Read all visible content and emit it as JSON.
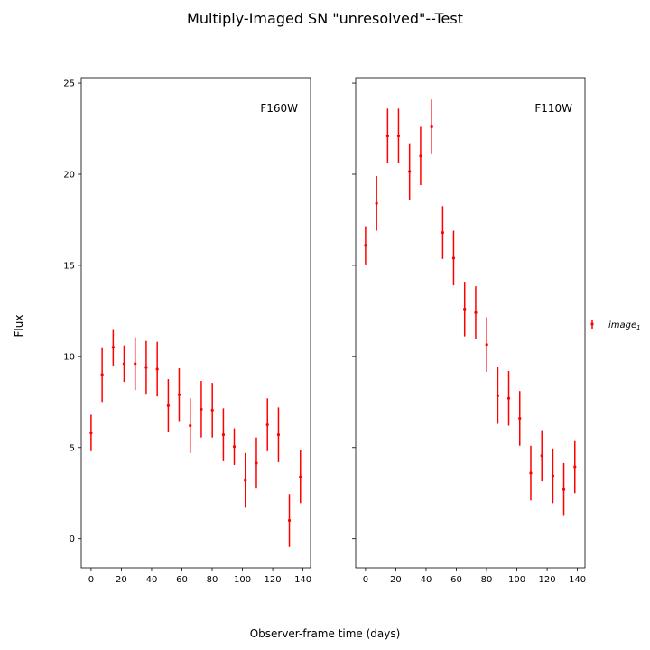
{
  "chart_data": {
    "type": "scatter",
    "title": "Multiply-Imaged SN \"unresolved\"--Test",
    "xlabel": "Observer-frame time (days)",
    "ylabel": "Flux",
    "sharey": true,
    "ylim": [
      -1.6,
      25.3
    ],
    "yticks": [
      0,
      5,
      10,
      15,
      20,
      25
    ],
    "xlim": [
      -6.5,
      145
    ],
    "xticks": [
      0,
      20,
      40,
      60,
      80,
      100,
      120,
      140
    ],
    "grid": false,
    "legend": {
      "position": "right",
      "entries": [
        {
          "label": "image",
          "subscript": "1",
          "color": "#ff0000"
        }
      ]
    },
    "marker_color": "#ff0000",
    "panels": [
      {
        "band": "F160W",
        "series": [
          {
            "x": [
              0,
              7.3,
              14.6,
              21.8,
              29.1,
              36.4,
              43.7,
              51,
              58.2,
              65.5,
              72.8,
              80.1,
              87.4,
              94.6,
              101.9,
              109.2,
              116.5,
              123.8,
              131,
              138.3
            ],
            "y": [
              5.8,
              9.0,
              10.5,
              9.6,
              9.6,
              9.4,
              9.3,
              7.3,
              7.9,
              6.2,
              7.1,
              7.05,
              5.7,
              5.05,
              3.2,
              4.15,
              6.25,
              5.7,
              1.0,
              3.4
            ],
            "yerr": [
              1.0,
              1.5,
              1.0,
              1.0,
              1.45,
              1.45,
              1.5,
              1.45,
              1.45,
              1.5,
              1.55,
              1.5,
              1.45,
              1.0,
              1.5,
              1.4,
              1.45,
              1.5,
              1.45,
              1.45
            ]
          }
        ]
      },
      {
        "band": "F110W",
        "series": [
          {
            "x": [
              0,
              7.3,
              14.6,
              21.8,
              29.1,
              36.4,
              43.7,
              51,
              58.2,
              65.5,
              72.8,
              80.1,
              87.4,
              94.6,
              101.9,
              109.2,
              116.5,
              123.8,
              131,
              138.3
            ],
            "y": [
              16.1,
              18.4,
              22.1,
              22.1,
              20.15,
              21.0,
              22.6,
              16.8,
              15.4,
              12.6,
              12.4,
              10.65,
              7.85,
              7.7,
              6.6,
              3.6,
              4.55,
              3.45,
              2.7,
              3.95
            ],
            "yerr": [
              1.05,
              1.5,
              1.5,
              1.5,
              1.55,
              1.6,
              1.5,
              1.45,
              1.5,
              1.5,
              1.45,
              1.5,
              1.55,
              1.5,
              1.5,
              1.5,
              1.4,
              1.5,
              1.45,
              1.45
            ]
          }
        ]
      }
    ]
  }
}
